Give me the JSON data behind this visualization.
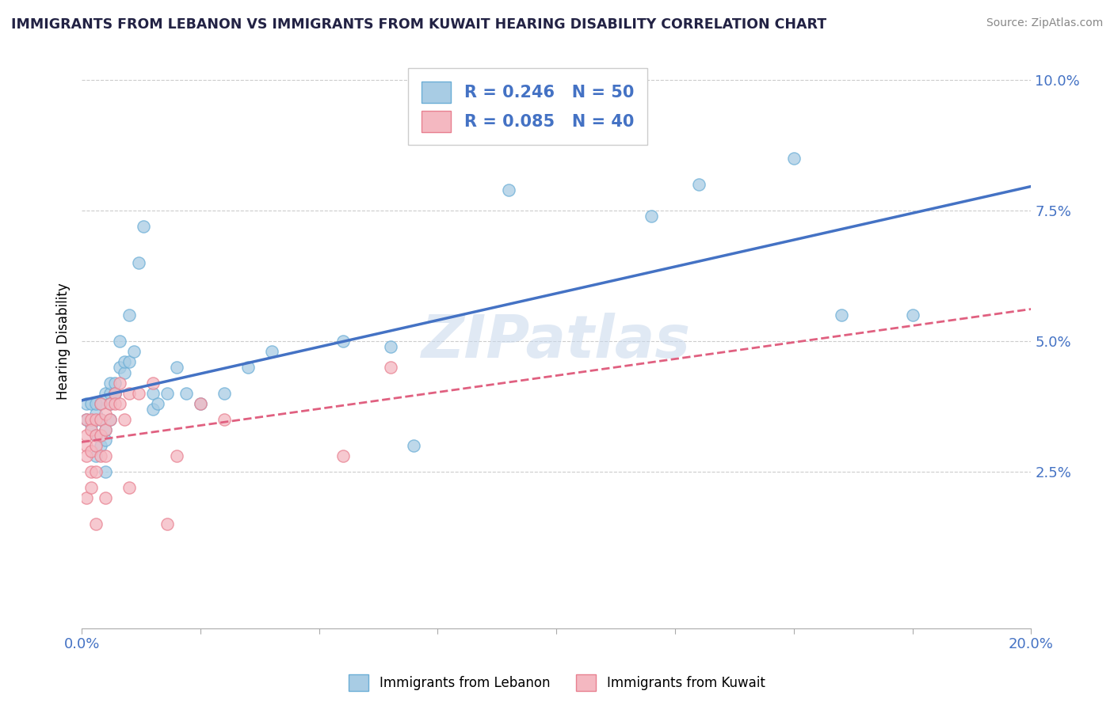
{
  "title": "IMMIGRANTS FROM LEBANON VS IMMIGRANTS FROM KUWAIT HEARING DISABILITY CORRELATION CHART",
  "source": "Source: ZipAtlas.com",
  "xlabel_label": "Immigrants from Lebanon",
  "xlabel_label2": "Immigrants from Kuwait",
  "ylabel": "Hearing Disability",
  "xlim": [
    0.0,
    0.2
  ],
  "ylim": [
    -0.005,
    0.105
  ],
  "xtick_positions": [
    0.0,
    0.025,
    0.05,
    0.075,
    0.1,
    0.125,
    0.15,
    0.175,
    0.2
  ],
  "xtick_labels": [
    "0.0%",
    "",
    "",
    "",
    "",
    "",
    "",
    "",
    "20.0%"
  ],
  "ytick_positions": [
    0.025,
    0.05,
    0.075,
    0.1
  ],
  "ytick_labels": [
    "2.5%",
    "5.0%",
    "7.5%",
    "10.0%"
  ],
  "lebanon_color": "#a8cce4",
  "lebanon_edge_color": "#6baed6",
  "kuwait_color": "#f4b8c1",
  "kuwait_edge_color": "#e88090",
  "lebanon_line_color": "#4472c4",
  "kuwait_line_color": "#e06080",
  "legend_R1": "R = 0.246",
  "legend_N1": "N = 50",
  "legend_R2": "R = 0.085",
  "legend_N2": "N = 40",
  "watermark": "ZIPatlas",
  "lebanon_x": [
    0.001,
    0.001,
    0.002,
    0.002,
    0.003,
    0.003,
    0.003,
    0.003,
    0.004,
    0.004,
    0.004,
    0.005,
    0.005,
    0.005,
    0.005,
    0.006,
    0.006,
    0.006,
    0.006,
    0.007,
    0.007,
    0.007,
    0.008,
    0.008,
    0.009,
    0.009,
    0.01,
    0.01,
    0.011,
    0.012,
    0.013,
    0.015,
    0.015,
    0.016,
    0.018,
    0.02,
    0.022,
    0.025,
    0.03,
    0.035,
    0.04,
    0.055,
    0.065,
    0.07,
    0.09,
    0.12,
    0.13,
    0.15,
    0.16,
    0.175
  ],
  "lebanon_y": [
    0.035,
    0.038,
    0.034,
    0.038,
    0.036,
    0.032,
    0.028,
    0.038,
    0.038,
    0.03,
    0.035,
    0.033,
    0.031,
    0.025,
    0.04,
    0.04,
    0.038,
    0.035,
    0.042,
    0.04,
    0.042,
    0.04,
    0.05,
    0.045,
    0.044,
    0.046,
    0.046,
    0.055,
    0.048,
    0.065,
    0.072,
    0.04,
    0.037,
    0.038,
    0.04,
    0.045,
    0.04,
    0.038,
    0.04,
    0.045,
    0.048,
    0.05,
    0.049,
    0.03,
    0.079,
    0.074,
    0.08,
    0.085,
    0.055,
    0.055
  ],
  "kuwait_x": [
    0.001,
    0.001,
    0.001,
    0.001,
    0.001,
    0.002,
    0.002,
    0.002,
    0.002,
    0.002,
    0.003,
    0.003,
    0.003,
    0.003,
    0.003,
    0.004,
    0.004,
    0.004,
    0.004,
    0.005,
    0.005,
    0.005,
    0.005,
    0.006,
    0.006,
    0.007,
    0.007,
    0.008,
    0.008,
    0.009,
    0.01,
    0.01,
    0.012,
    0.015,
    0.018,
    0.02,
    0.025,
    0.03,
    0.055,
    0.065
  ],
  "kuwait_y": [
    0.03,
    0.032,
    0.028,
    0.035,
    0.02,
    0.035,
    0.033,
    0.029,
    0.025,
    0.022,
    0.035,
    0.032,
    0.03,
    0.025,
    0.015,
    0.038,
    0.035,
    0.032,
    0.028,
    0.036,
    0.033,
    0.028,
    0.02,
    0.038,
    0.035,
    0.04,
    0.038,
    0.042,
    0.038,
    0.035,
    0.04,
    0.022,
    0.04,
    0.042,
    0.015,
    0.028,
    0.038,
    0.035,
    0.028,
    0.045
  ]
}
